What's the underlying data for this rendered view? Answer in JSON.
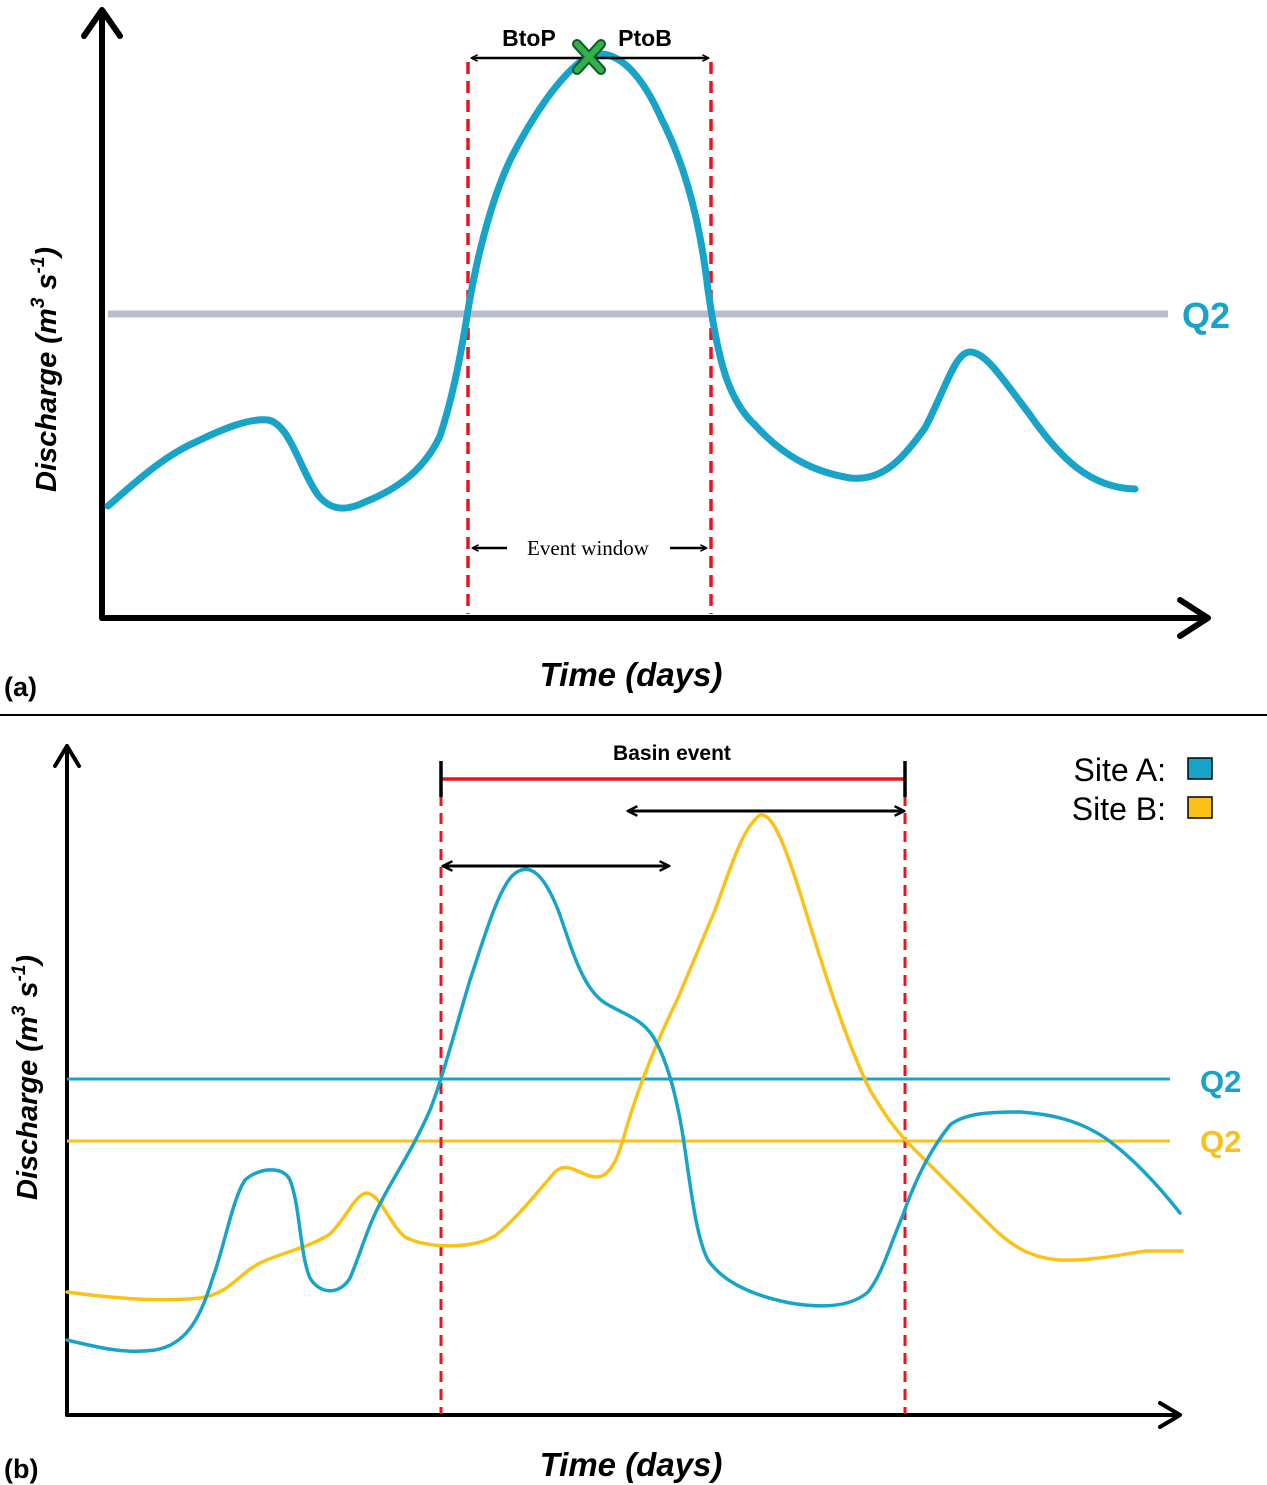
{
  "colors": {
    "site_a": "#17a4c8",
    "site_b": "#fbc116",
    "threshold_gray": "#b9bccb",
    "event_red": "#e6161f",
    "peak_marker": "#33b04a",
    "axis": "#000000"
  },
  "panel_a": {
    "panel_label": "(a)",
    "y_label_main": "Discharge (m",
    "y_label_sup1": "3",
    "y_label_mid": " s",
    "y_label_sup2": "-1",
    "y_label_end": ")",
    "x_label": "Time (days)",
    "threshold_label": "Q2",
    "btop_label": "BtoP",
    "ptob_label": "PtoB",
    "event_window_label": "Event window"
  },
  "panel_b": {
    "panel_label": "(b)",
    "y_label_main": "Discharge (m",
    "y_label_sup1": "3",
    "y_label_mid": " s",
    "y_label_sup2": "-1",
    "y_label_end": ")",
    "x_label": "Time (days)",
    "basin_event_label": "Basin event",
    "legend": [
      {
        "label": "Site A:",
        "icon": "blue-square-icon"
      },
      {
        "label": "Site B:",
        "icon": "yellow-square-icon"
      }
    ],
    "threshold_a_label": "Q2",
    "threshold_b_label": "Q2"
  }
}
